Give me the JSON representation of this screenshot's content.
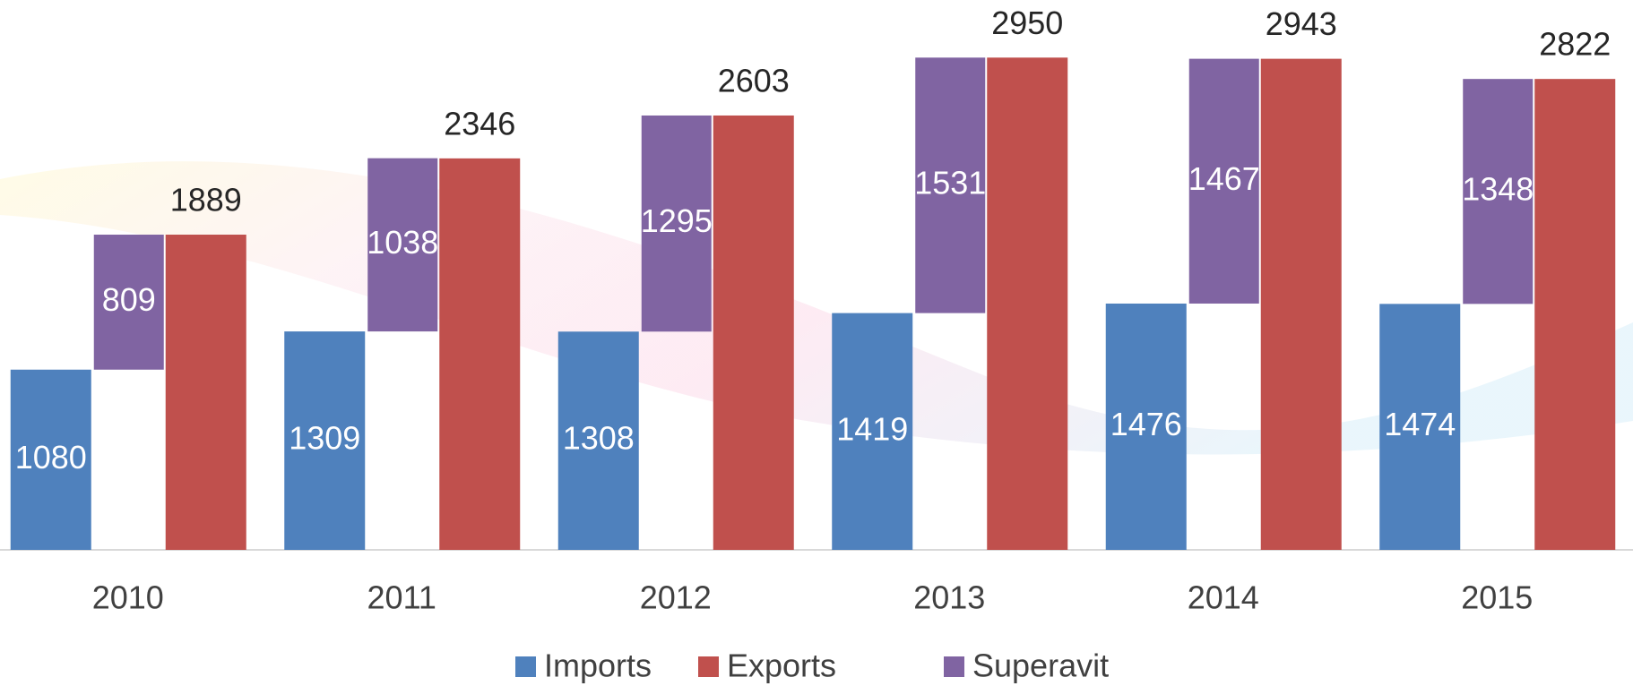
{
  "chart_data": {
    "type": "bar",
    "categories": [
      "2010",
      "2011",
      "2012",
      "2013",
      "2014",
      "2015"
    ],
    "series": [
      {
        "name": "Imports",
        "color": "#4f81bd",
        "values": [
          1080,
          1309,
          1308,
          1419,
          1476,
          1474
        ]
      },
      {
        "name": "Exports",
        "color": "#c0504d",
        "values": [
          1889,
          2346,
          2603,
          2950,
          2943,
          2822
        ]
      },
      {
        "name": "Superavit",
        "color": "#8064a2",
        "values": [
          809,
          1038,
          1295,
          1531,
          1467,
          1348
        ]
      }
    ],
    "ylim": [
      0,
      3000
    ],
    "grid": false
  }
}
